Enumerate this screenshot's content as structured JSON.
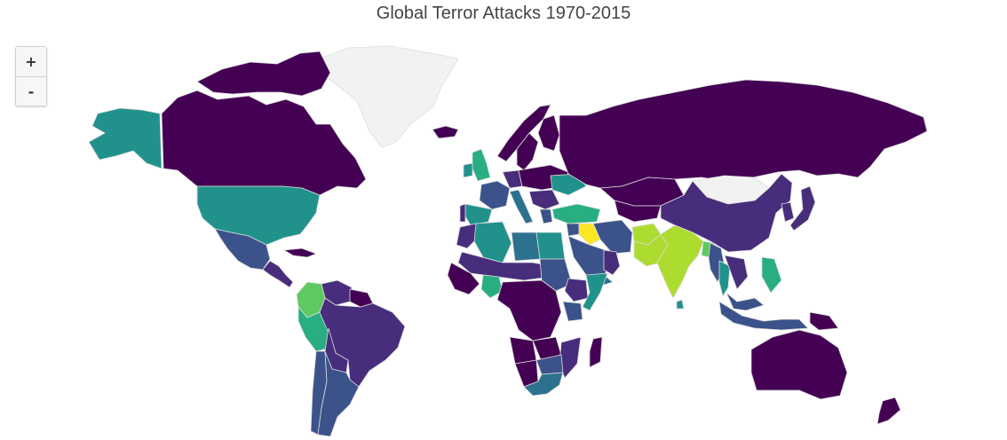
{
  "title": "Global Terror Attacks 1970-2015",
  "zoom": {
    "in_label": "+",
    "out_label": "-"
  },
  "colors": {
    "no_data": "#f2f2f2",
    "scale": [
      "#440154",
      "#472d7b",
      "#3b528b",
      "#2c728e",
      "#21918c",
      "#28ae80",
      "#5ec962",
      "#addc30",
      "#fde725"
    ]
  },
  "regions": [
    {
      "name": "Alaska",
      "level": 4
    },
    {
      "name": "Canada",
      "level": 0
    },
    {
      "name": "Greenland",
      "level": null
    },
    {
      "name": "Arctic Islands",
      "level": 0
    },
    {
      "name": "Iceland",
      "level": 0
    },
    {
      "name": "United States",
      "level": 4
    },
    {
      "name": "Mexico",
      "level": 2
    },
    {
      "name": "Central America",
      "level": 1
    },
    {
      "name": "Caribbean",
      "level": 0
    },
    {
      "name": "Colombia",
      "level": 6
    },
    {
      "name": "Venezuela",
      "level": 1
    },
    {
      "name": "Guianas",
      "level": 0
    },
    {
      "name": "Peru",
      "level": 5
    },
    {
      "name": "Brazil",
      "level": 1
    },
    {
      "name": "Bolivia",
      "level": 1
    },
    {
      "name": "Chile",
      "level": 2
    },
    {
      "name": "Argentina",
      "level": 2
    },
    {
      "name": "United Kingdom",
      "level": 5
    },
    {
      "name": "Ireland",
      "level": 4
    },
    {
      "name": "Norway",
      "level": 0
    },
    {
      "name": "Sweden",
      "level": 0
    },
    {
      "name": "Finland",
      "level": 0
    },
    {
      "name": "France",
      "level": 2
    },
    {
      "name": "Spain",
      "level": 4
    },
    {
      "name": "Portugal",
      "level": 1
    },
    {
      "name": "Germany",
      "level": 1
    },
    {
      "name": "Italy",
      "level": 3
    },
    {
      "name": "Central Europe",
      "level": 0
    },
    {
      "name": "Ukraine",
      "level": 4
    },
    {
      "name": "Balkans",
      "level": 1
    },
    {
      "name": "Greece",
      "level": 2
    },
    {
      "name": "Turkey",
      "level": 5
    },
    {
      "name": "Russia",
      "level": 0
    },
    {
      "name": "Kazakhstan",
      "level": 0
    },
    {
      "name": "Central Asia",
      "level": 0
    },
    {
      "name": "Mongolia",
      "level": null
    },
    {
      "name": "China",
      "level": 1
    },
    {
      "name": "Korea",
      "level": 1
    },
    {
      "name": "Japan",
      "level": 1
    },
    {
      "name": "Iraq",
      "level": 8
    },
    {
      "name": "Syria",
      "level": 2
    },
    {
      "name": "Iran",
      "level": 2
    },
    {
      "name": "Saudi Arabia",
      "level": 2
    },
    {
      "name": "Yemen",
      "level": 3
    },
    {
      "name": "Oman",
      "level": 1
    },
    {
      "name": "Afghanistan",
      "level": 7
    },
    {
      "name": "Pakistan",
      "level": 7
    },
    {
      "name": "India",
      "level": 7
    },
    {
      "name": "Sri Lanka",
      "level": 4
    },
    {
      "name": "Bangladesh",
      "level": 6
    },
    {
      "name": "Myanmar",
      "level": 2
    },
    {
      "name": "Thailand",
      "level": 4
    },
    {
      "name": "Indochina",
      "level": 1
    },
    {
      "name": "Philippines",
      "level": 5
    },
    {
      "name": "Malaysia",
      "level": 2
    },
    {
      "name": "Indonesia",
      "level": 2
    },
    {
      "name": "Papua New Guinea",
      "level": 0
    },
    {
      "name": "Australia",
      "level": 0
    },
    {
      "name": "New Zealand",
      "level": 0
    },
    {
      "name": "Morocco",
      "level": 1
    },
    {
      "name": "Algeria",
      "level": 4
    },
    {
      "name": "Libya",
      "level": 3
    },
    {
      "name": "Egypt",
      "level": 4
    },
    {
      "name": "Sahel",
      "level": 1
    },
    {
      "name": "West Africa",
      "level": 0
    },
    {
      "name": "Nigeria",
      "level": 5
    },
    {
      "name": "Sudan",
      "level": 2
    },
    {
      "name": "Ethiopia",
      "level": 1
    },
    {
      "name": "Somalia",
      "level": 4
    },
    {
      "name": "Central Africa",
      "level": 0
    },
    {
      "name": "Kenya",
      "level": 2
    },
    {
      "name": "Angola",
      "level": 0
    },
    {
      "name": "Zambia",
      "level": 0
    },
    {
      "name": "Mozambique",
      "level": 1
    },
    {
      "name": "Zimbabwe",
      "level": 2
    },
    {
      "name": "Namibia",
      "level": 0
    },
    {
      "name": "South Africa",
      "level": 3
    },
    {
      "name": "Madagascar",
      "level": 0
    }
  ]
}
